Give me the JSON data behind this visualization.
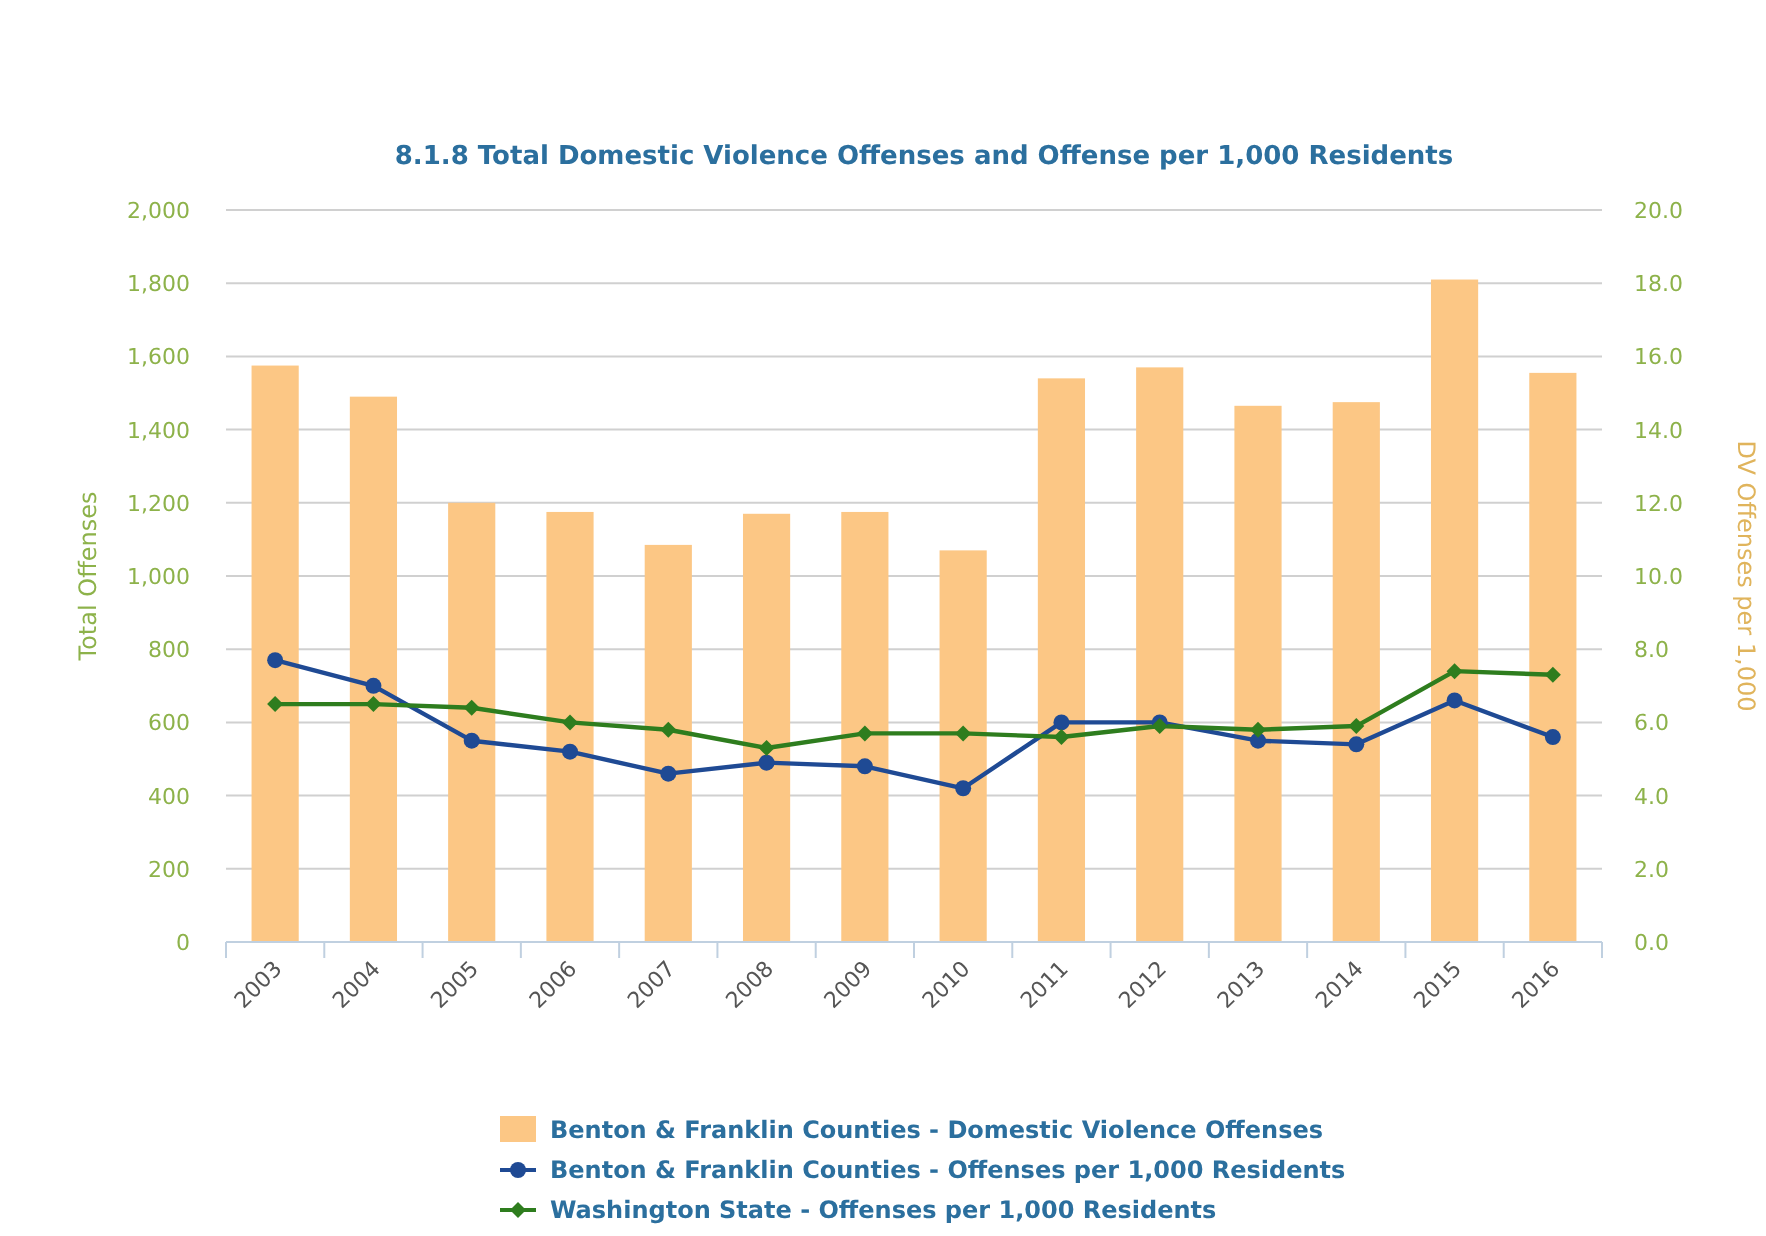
{
  "chart_data": {
    "type": "bar",
    "title": "8.1.8 Total Domestic Violence Offenses and Offense per 1,000 Residents",
    "ylabel": "Total Offenses",
    "y2label": "DV Offenses per 1,000",
    "categories": [
      "2003",
      "2004",
      "2005",
      "2006",
      "2007",
      "2008",
      "2009",
      "2010",
      "2011",
      "2012",
      "2013",
      "2014",
      "2015",
      "2016"
    ],
    "series": [
      {
        "name": "Benton & Franklin Counties - Domestic Violence Offenses",
        "color": "#fcc785",
        "values": [
          1575,
          1490,
          1200,
          1175,
          1085,
          1170,
          1175,
          1070,
          1540,
          1570,
          1465,
          1475,
          1810,
          1555
        ]
      },
      {
        "name": "Benton & Franklin Counties - Offenses per 1,000 Residents",
        "type": "line",
        "axis": "y2",
        "color": "#1f4a94",
        "marker": "circle",
        "values": [
          7.7,
          7.0,
          5.5,
          5.2,
          4.6,
          4.9,
          4.8,
          4.2,
          6.0,
          6.0,
          5.5,
          5.4,
          6.6,
          5.6
        ]
      },
      {
        "name": "Washington State - Offenses per 1,000 Residents",
        "type": "line",
        "axis": "y2",
        "color": "#2e7d1e",
        "marker": "diamond",
        "values": [
          6.5,
          6.5,
          6.4,
          6.0,
          5.8,
          5.3,
          5.7,
          5.7,
          5.6,
          5.9,
          5.8,
          5.9,
          7.4,
          7.3
        ]
      }
    ],
    "ylim": [
      0,
      2000
    ],
    "yticks": [
      {
        "value": 0,
        "label": "0"
      },
      {
        "value": 200,
        "label": "200"
      },
      {
        "value": 400,
        "label": "400"
      },
      {
        "value": 600,
        "label": "600"
      },
      {
        "value": 800,
        "label": "800"
      },
      {
        "value": 1000,
        "label": "1,000"
      },
      {
        "value": 1200,
        "label": "1,200"
      },
      {
        "value": 1400,
        "label": "1,400"
      },
      {
        "value": 1600,
        "label": "1,600"
      },
      {
        "value": 1800,
        "label": "1,800"
      },
      {
        "value": 2000,
        "label": "2,000"
      }
    ],
    "y2lim": [
      0,
      20
    ],
    "y2ticks": [
      {
        "value": 0,
        "label": "0.0"
      },
      {
        "value": 2,
        "label": "2.0"
      },
      {
        "value": 4,
        "label": "4.0"
      },
      {
        "value": 6,
        "label": "6.0"
      },
      {
        "value": 8,
        "label": "8.0"
      },
      {
        "value": 10,
        "label": "10.0"
      },
      {
        "value": 12,
        "label": "12.0"
      },
      {
        "value": 14,
        "label": "14.0"
      },
      {
        "value": 16,
        "label": "16.0"
      },
      {
        "value": 18,
        "label": "18.0"
      },
      {
        "value": 20,
        "label": "20.0"
      }
    ],
    "grid": "y",
    "legend": "bottom"
  }
}
